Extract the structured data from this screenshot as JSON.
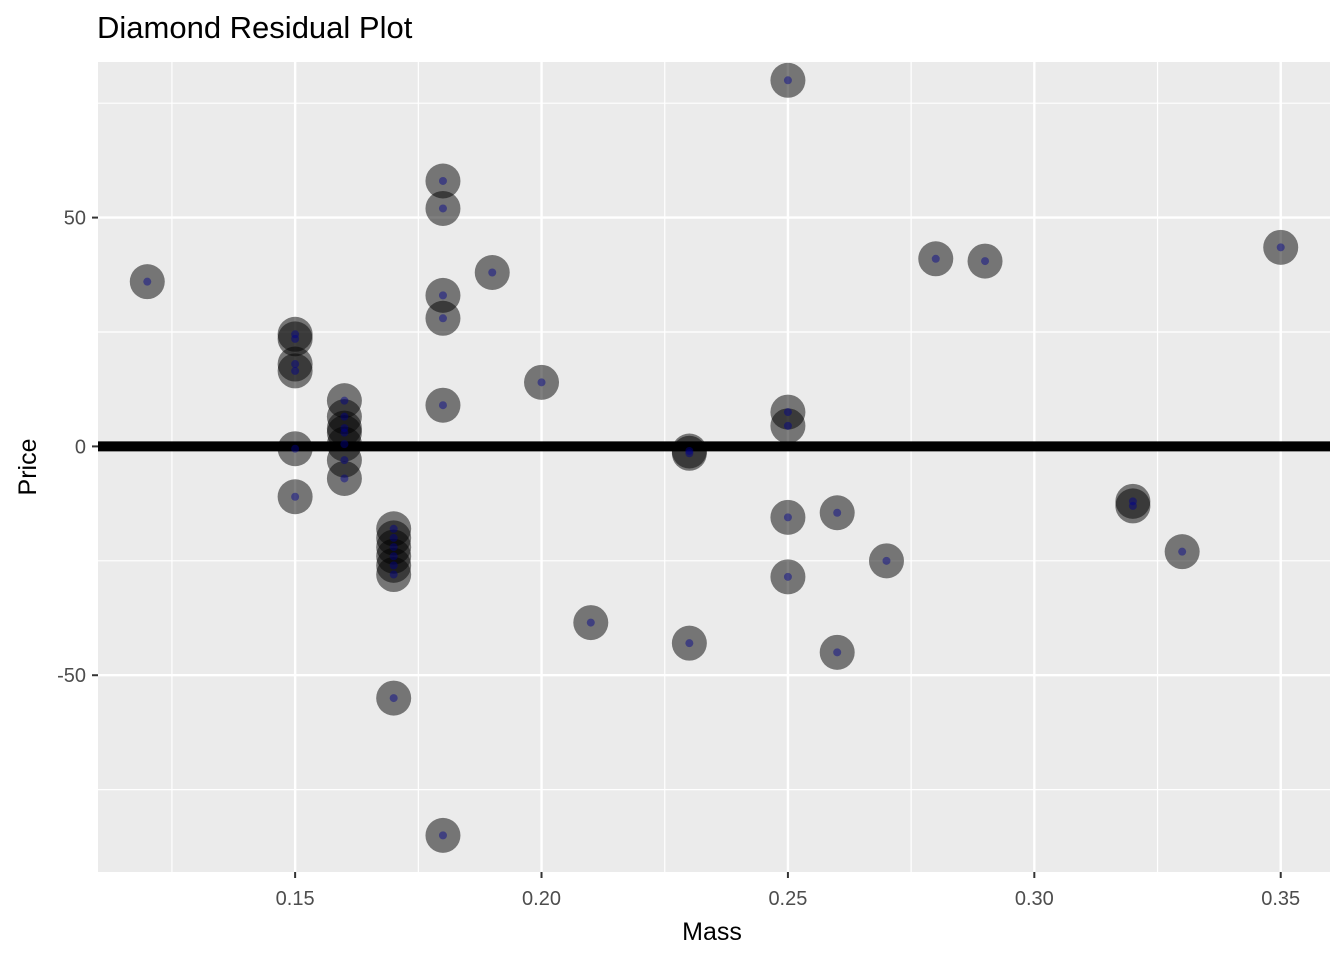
{
  "chart_data": {
    "type": "scatter",
    "title": "Diamond Residual Plot",
    "xlabel": "Mass",
    "ylabel": "Price",
    "xlim": [
      0.11,
      0.36
    ],
    "ylim": [
      -93,
      84
    ],
    "x_ticks": [
      0.15,
      0.2,
      0.25,
      0.3,
      0.35
    ],
    "x_tick_labels": [
      "0.15",
      "0.20",
      "0.25",
      "0.30",
      "0.35"
    ],
    "y_ticks": [
      -50,
      0,
      50
    ],
    "y_tick_labels": [
      "-50",
      "0",
      "50"
    ],
    "reference_line": {
      "y": 0,
      "color": "#000000"
    },
    "grid": true,
    "colors": {
      "panel_background": "#ebebeb",
      "grid": "#ffffff",
      "large_point": "#000000",
      "small_point": "#00008b"
    },
    "series": [
      {
        "points": [
          {
            "x": 0.12,
            "y": 36
          },
          {
            "x": 0.15,
            "y": 24.5
          },
          {
            "x": 0.15,
            "y": 23.5
          },
          {
            "x": 0.15,
            "y": 18
          },
          {
            "x": 0.15,
            "y": 16.5
          },
          {
            "x": 0.15,
            "y": -0.5
          },
          {
            "x": 0.15,
            "y": -11
          },
          {
            "x": 0.16,
            "y": 10
          },
          {
            "x": 0.16,
            "y": 6.5
          },
          {
            "x": 0.16,
            "y": 4
          },
          {
            "x": 0.16,
            "y": 3
          },
          {
            "x": 0.16,
            "y": 0.5
          },
          {
            "x": 0.16,
            "y": -3
          },
          {
            "x": 0.16,
            "y": -7
          },
          {
            "x": 0.17,
            "y": -18
          },
          {
            "x": 0.17,
            "y": -20
          },
          {
            "x": 0.17,
            "y": -22
          },
          {
            "x": 0.17,
            "y": -24
          },
          {
            "x": 0.17,
            "y": -26
          },
          {
            "x": 0.17,
            "y": -28
          },
          {
            "x": 0.17,
            "y": -55
          },
          {
            "x": 0.18,
            "y": 58
          },
          {
            "x": 0.18,
            "y": 52
          },
          {
            "x": 0.18,
            "y": 33
          },
          {
            "x": 0.18,
            "y": 28
          },
          {
            "x": 0.18,
            "y": 9
          },
          {
            "x": 0.18,
            "y": -85
          },
          {
            "x": 0.19,
            "y": 38
          },
          {
            "x": 0.2,
            "y": 14
          },
          {
            "x": 0.21,
            "y": -38.5
          },
          {
            "x": 0.23,
            "y": -1
          },
          {
            "x": 0.23,
            "y": -1.5
          },
          {
            "x": 0.23,
            "y": -43
          },
          {
            "x": 0.25,
            "y": 80
          },
          {
            "x": 0.25,
            "y": 7.5
          },
          {
            "x": 0.25,
            "y": 4.5
          },
          {
            "x": 0.25,
            "y": -15.5
          },
          {
            "x": 0.25,
            "y": -28.5
          },
          {
            "x": 0.26,
            "y": -14.5
          },
          {
            "x": 0.26,
            "y": -45
          },
          {
            "x": 0.27,
            "y": -25
          },
          {
            "x": 0.28,
            "y": 41
          },
          {
            "x": 0.29,
            "y": 40.5
          },
          {
            "x": 0.32,
            "y": -12
          },
          {
            "x": 0.32,
            "y": -13
          },
          {
            "x": 0.33,
            "y": -23
          },
          {
            "x": 0.35,
            "y": 43.5
          }
        ]
      }
    ]
  }
}
